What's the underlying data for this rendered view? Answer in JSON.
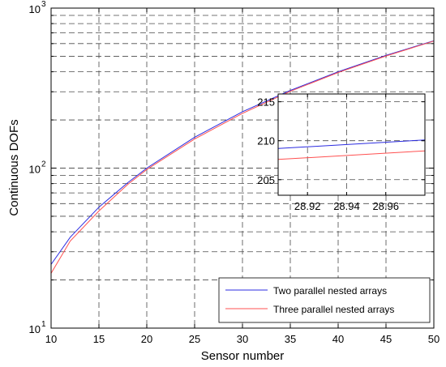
{
  "chart_data": [
    {
      "type": "line",
      "xlabel": "Sensor number",
      "ylabel": "Continuous DOFs",
      "xlim": [
        10,
        50
      ],
      "ylim": [
        10,
        1000
      ],
      "yscale": "log",
      "grid": true,
      "legend_position": "bottom-right",
      "x_ticks": [
        "10",
        "15",
        "20",
        "25",
        "30",
        "35",
        "40",
        "45",
        "50"
      ],
      "y_ticks": [
        {
          "value": 10,
          "base": "10",
          "exp": "1"
        },
        {
          "value": 100,
          "base": "10",
          "exp": "2"
        },
        {
          "value": 1000,
          "base": "10",
          "exp": "3"
        }
      ],
      "series": [
        {
          "name": "Two parallel nested arrays",
          "color": "#2b2be0",
          "x": [
            10,
            12,
            15,
            18,
            20,
            25,
            30,
            35,
            40,
            45,
            50
          ],
          "y": [
            25,
            37,
            57,
            81,
            100,
            156,
            225,
            306,
            400,
            506,
            625
          ]
        },
        {
          "name": "Three parallel nested arrays",
          "color": "#ff5050",
          "x": [
            10,
            12,
            15,
            18,
            20,
            25,
            30,
            35,
            40,
            45,
            50
          ],
          "y": [
            22,
            35,
            54,
            79,
            98,
            152,
            220,
            302,
            396,
            502,
            622
          ]
        }
      ]
    },
    {
      "type": "line",
      "inset": true,
      "xlim": [
        28.905,
        28.98
      ],
      "ylim": [
        203,
        216
      ],
      "grid": true,
      "x_ticks": [
        "28.92",
        "28.94",
        "28.96"
      ],
      "y_ticks": [
        "205",
        "210",
        "215"
      ],
      "series": [
        {
          "name": "Two parallel nested arrays",
          "color": "#2b2be0",
          "x": [
            28.905,
            28.98
          ],
          "y": [
            209.0,
            210.1
          ]
        },
        {
          "name": "Three parallel nested arrays",
          "color": "#ff5050",
          "x": [
            28.905,
            28.98
          ],
          "y": [
            207.6,
            208.7
          ]
        }
      ]
    }
  ]
}
